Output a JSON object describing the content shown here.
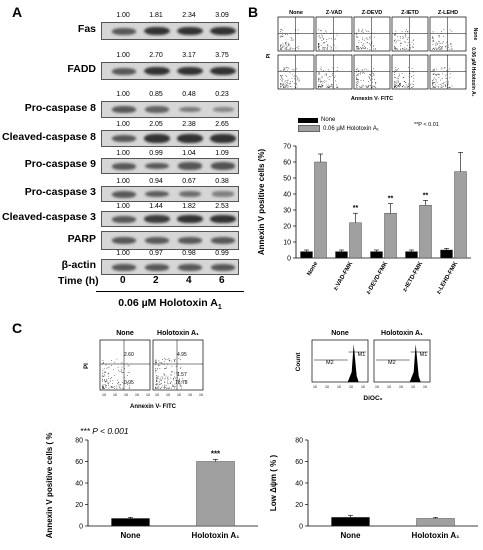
{
  "panelA": {
    "letter": "A",
    "blots": [
      {
        "label": "Fas",
        "values": [
          "1.00",
          "1.81",
          "2.34",
          "3.09"
        ]
      },
      {
        "label": "FADD",
        "values": [
          "1.00",
          "2.70",
          "3.17",
          "3.75"
        ]
      },
      {
        "label": "Pro-caspase 8",
        "values": [
          "1.00",
          "0.85",
          "0.48",
          "0.23"
        ]
      },
      {
        "label": "Cleaved-caspase 8",
        "values": [
          "1.00",
          "2.05",
          "2.38",
          "2.65"
        ]
      },
      {
        "label": "Pro-caspase 9",
        "values": [
          "1.00",
          "0.99",
          "1.04",
          "1.09"
        ]
      },
      {
        "label": "Pro-caspase 3",
        "values": [
          "1.00",
          "0.94",
          "0.67",
          "0.38"
        ]
      },
      {
        "label": "Cleaved-caspase 3",
        "values": [
          "1.00",
          "1.44",
          "1.82",
          "2.53"
        ]
      },
      {
        "label": "PARP",
        "values": [
          "1.00",
          "0.97",
          "0.98",
          "0.99"
        ]
      },
      {
        "label": "β-actin",
        "values": []
      }
    ],
    "time_label": "Time (h)",
    "times": [
      "0",
      "2",
      "4",
      "6"
    ],
    "treatment": "0.06 µM Holotoxin A",
    "treatment_sub": "1"
  },
  "panelB": {
    "letter": "B",
    "flow_headers": [
      "None",
      "Z-VAD",
      "Z-DEVD",
      "Z-IETD",
      "Z-LEHD"
    ],
    "flow_side_top": "None",
    "flow_side_bottom": "0.06 µM Holotoxin A₁",
    "flow_ylabel": "PI",
    "flow_xlabel": "Annexin V- FITC",
    "legend_none": "None",
    "legend_treated": "0.06 µM Holotoxin A₁",
    "pnote": "**P < 0.01",
    "colors": {
      "none": "#000000",
      "treated": "#a0a0a0"
    }
  },
  "panelC": {
    "letter": "C",
    "flow_headers": [
      "None",
      "Holotoxin A₁"
    ],
    "flow_ylabel": "PI",
    "flow_xlabel": "Annexin V- FITC",
    "quad_values": [
      "2.60",
      "4.95",
      "0.95",
      "1.57",
      "78.78"
    ],
    "hist_headers": [
      "None",
      "Holotoxin A₁"
    ],
    "hist_ylabel": "Count",
    "hist_xlabel": "DiOC₆",
    "hist_m1": "M1",
    "hist_m2": "M2",
    "pnote": "*** P < 0.001",
    "star": "***"
  },
  "chart_data": [
    {
      "type": "bar",
      "title": "",
      "ylabel": "Annexin V positive cells (%)",
      "categories": [
        "None",
        "z-VAD-FMK",
        "z-DEVD-FMK",
        "z-IETD-FMK",
        "z-LEHD-FMK"
      ],
      "series": [
        {
          "name": "None",
          "values": [
            4,
            4,
            4,
            4,
            5
          ],
          "errors": [
            1,
            1,
            1,
            1,
            1
          ]
        },
        {
          "name": "0.06 µM Holotoxin A₁",
          "values": [
            60,
            22,
            28,
            33,
            54
          ],
          "errors": [
            5,
            6,
            6,
            3,
            12
          ]
        }
      ],
      "significance": [
        "",
        "**",
        "**",
        "**",
        ""
      ],
      "ylim": [
        0,
        70
      ],
      "yticks": [
        0,
        10,
        20,
        30,
        40,
        50,
        60,
        70
      ]
    },
    {
      "type": "bar",
      "title": "",
      "ylabel": "Annexin V positive cells ( % )",
      "categories": [
        "None",
        "Holotoxin A₁"
      ],
      "values": [
        7,
        60
      ],
      "errors": [
        1,
        2
      ],
      "significance": [
        "",
        "***"
      ],
      "ylim": [
        0,
        80
      ],
      "yticks": [
        0,
        20,
        40,
        60,
        80
      ]
    },
    {
      "type": "bar",
      "title": "",
      "ylabel": "Low Δψm ( % )",
      "categories": [
        "None",
        "Holotoxin A₁"
      ],
      "values": [
        8,
        7
      ],
      "errors": [
        2,
        1
      ],
      "ylim": [
        0,
        80
      ],
      "yticks": [
        0,
        20,
        40,
        60,
        80
      ]
    }
  ]
}
